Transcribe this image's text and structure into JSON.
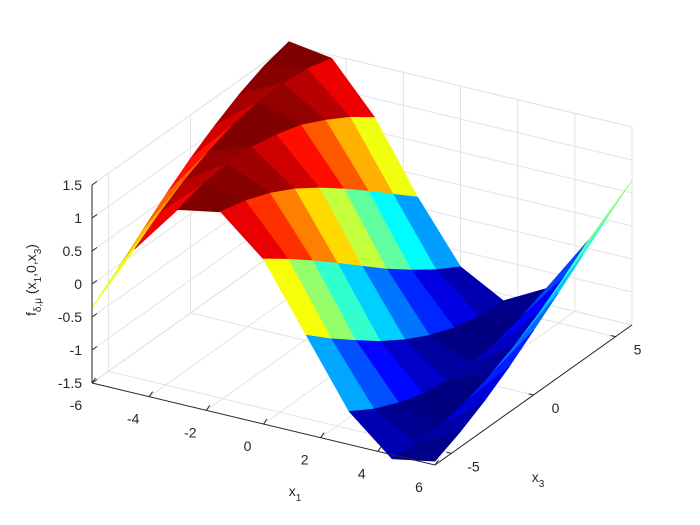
{
  "chart_data": {
    "type": "surface",
    "colormap": "jet",
    "grid": true,
    "xlabel": [
      "x",
      "1"
    ],
    "ylabel": [
      "x",
      "3"
    ],
    "zlabel": [
      "f",
      "δ,μ",
      " (x",
      "1",
      ",0,x",
      "3",
      ")"
    ],
    "x": [
      -6,
      -4.5,
      -3,
      -1.5,
      0,
      1.5,
      3,
      4.5,
      6
    ],
    "y": [
      -6,
      -4.5,
      -3,
      -1.5,
      0,
      1.5,
      3,
      4.5,
      6
    ],
    "z": [
      [
        -0.36,
        -0.06,
        0.25,
        0.56,
        0.84,
        1.08,
        1.29,
        1.45,
        1.55
      ],
      [
        0.69,
        0.96,
        1.19,
        1.37,
        1.51,
        1.58,
        1.6,
        1.56,
        1.45
      ],
      [
        1.44,
        1.55,
        1.6,
        1.59,
        1.51,
        1.39,
        1.2,
        0.98,
        0.71
      ],
      [
        1.56,
        1.46,
        1.31,
        1.11,
        0.86,
        0.58,
        0.28,
        -0.03,
        -0.34
      ],
      [
        1.0,
        0.73,
        0.44,
        0.14,
        -0.17,
        -0.48,
        -0.76,
        -1.02,
        -1.24
      ],
      [
        0,
        -0.32,
        -0.61,
        -0.89,
        -1.13,
        -1.33,
        -1.48,
        -1.57,
        -1.6
      ],
      [
        -1.0,
        -1.23,
        -1.4,
        -1.53,
        -1.59,
        -1.59,
        -1.54,
        -1.42,
        -1.26
      ],
      [
        -1.56,
        -1.6,
        -1.58,
        -1.49,
        -1.35,
        -1.16,
        -0.93,
        -0.66,
        -0.36
      ],
      [
        -1.44,
        -1.27,
        -1.06,
        -0.81,
        -0.52,
        -0.22,
        0.09,
        0.4,
        0.69
      ]
    ],
    "xlim": [
      -6,
      6
    ],
    "ylim": [
      -6,
      6
    ],
    "zlim": [
      -1.5,
      1.5
    ],
    "xticks": [
      -6,
      -4,
      -2,
      0,
      2,
      4,
      6
    ],
    "yticks": [
      -5,
      0,
      5
    ],
    "zticks": [
      -1.5,
      -1,
      -0.5,
      0,
      0.5,
      1,
      1.5
    ]
  }
}
